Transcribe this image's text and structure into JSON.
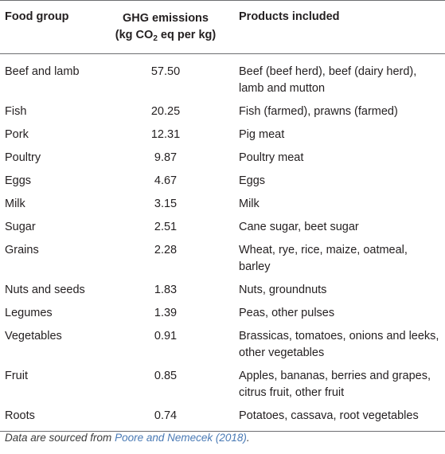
{
  "header": {
    "food_group": "Food group",
    "ghg_line1": "GHG emissions",
    "ghg_line2_pre": "(kg CO",
    "ghg_line2_sub": "2",
    "ghg_line2_post": " eq per kg)",
    "products": "Products included"
  },
  "rows": [
    {
      "food": "Beef and lamb",
      "value": "57.50",
      "products": "Beef (beef herd), beef (dairy herd), lamb and mutton"
    },
    {
      "food": "Fish",
      "value": "20.25",
      "products": "Fish (farmed), prawns (farmed)"
    },
    {
      "food": "Pork",
      "value": "12.31",
      "products": "Pig meat"
    },
    {
      "food": "Poultry",
      "value": "9.87",
      "products": "Poultry meat"
    },
    {
      "food": "Eggs",
      "value": "4.67",
      "products": "Eggs"
    },
    {
      "food": "Milk",
      "value": "3.15",
      "products": "Milk"
    },
    {
      "food": "Sugar",
      "value": "2.51",
      "products": "Cane sugar, beet sugar"
    },
    {
      "food": "Grains",
      "value": "2.28",
      "products": "Wheat, rye, rice, maize, oatmeal, barley"
    },
    {
      "food": "Nuts and seeds",
      "value": "1.83",
      "products": "Nuts, groundnuts"
    },
    {
      "food": "Legumes",
      "value": "1.39",
      "products": "Peas, other pulses"
    },
    {
      "food": "Vegetables",
      "value": "0.91",
      "products": "Brassicas, tomatoes, onions and leeks, other vegetables"
    },
    {
      "food": "Fruit",
      "value": "0.85",
      "products": "Apples, bananas, berries and grapes, citrus fruit, other fruit"
    },
    {
      "food": "Roots",
      "value": "0.74",
      "products": "Potatoes, cassava, root vegetables"
    }
  ],
  "footnote": {
    "prefix": "Data are sourced from ",
    "reference": "Poore and Nemecek (2018)",
    "suffix": "."
  }
}
